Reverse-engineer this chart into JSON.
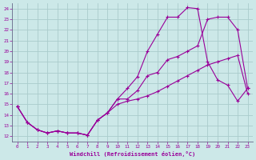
{
  "xlabel": "Windchill (Refroidissement éolien,°C)",
  "background_color": "#cce8e8",
  "grid_color": "#aacccc",
  "line_color": "#990099",
  "xlim": [
    0,
    23
  ],
  "ylim": [
    12,
    24
  ],
  "xticks": [
    0,
    1,
    2,
    3,
    4,
    5,
    6,
    7,
    8,
    9,
    10,
    11,
    12,
    13,
    14,
    15,
    16,
    17,
    18,
    19,
    20,
    21,
    22,
    23
  ],
  "yticks": [
    12,
    13,
    14,
    15,
    16,
    17,
    18,
    19,
    20,
    21,
    22,
    23,
    24
  ],
  "line1_x": [
    0,
    1,
    2,
    3,
    4,
    5,
    6,
    7,
    8,
    9,
    10,
    11,
    12,
    13,
    14,
    15,
    16,
    17,
    18,
    19,
    20,
    21,
    22,
    23
  ],
  "line1_y": [
    14.8,
    13.3,
    12.6,
    12.3,
    12.5,
    12.3,
    12.3,
    12.1,
    13.5,
    14.2,
    15.0,
    15.3,
    15.5,
    15.8,
    16.2,
    16.7,
    17.2,
    17.7,
    18.2,
    18.7,
    19.0,
    19.3,
    19.6,
    16.0
  ],
  "line2_x": [
    0,
    1,
    2,
    3,
    4,
    5,
    6,
    7,
    8,
    9,
    10,
    11,
    12,
    13,
    14,
    15,
    16,
    17,
    18,
    19,
    20,
    21,
    22,
    23
  ],
  "line2_y": [
    14.8,
    13.3,
    12.6,
    12.3,
    12.5,
    12.3,
    12.3,
    12.1,
    13.5,
    14.2,
    15.5,
    15.5,
    16.3,
    17.7,
    18.0,
    19.2,
    19.5,
    20.0,
    20.5,
    23.0,
    23.2,
    23.2,
    22.0,
    16.5
  ],
  "line3_x": [
    0,
    1,
    2,
    3,
    4,
    5,
    6,
    7,
    8,
    9,
    10,
    11,
    12,
    13,
    14,
    15,
    16,
    17,
    18,
    19,
    20,
    21,
    22,
    23
  ],
  "line3_y": [
    14.8,
    13.3,
    12.6,
    12.3,
    12.5,
    12.3,
    12.3,
    12.1,
    13.5,
    14.2,
    15.5,
    16.5,
    17.6,
    20.0,
    21.6,
    23.2,
    23.2,
    24.1,
    24.0,
    19.0,
    17.3,
    16.8,
    15.3,
    16.5
  ]
}
